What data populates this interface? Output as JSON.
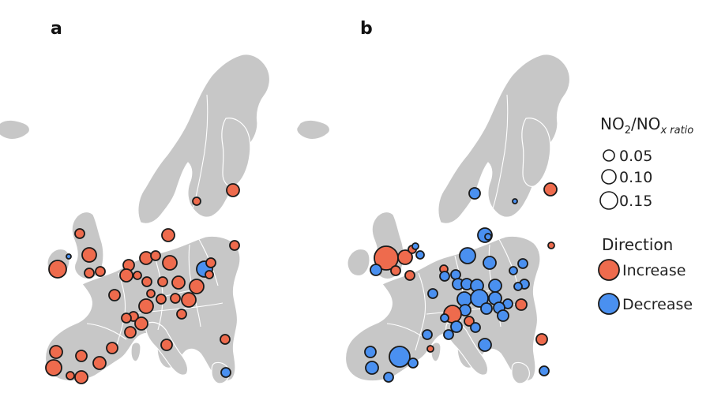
{
  "panels": [
    {
      "label": "a"
    },
    {
      "label": "b"
    }
  ],
  "legend": {
    "ratio_title_main": "NO",
    "ratio_title_sub1": "2",
    "ratio_title_mid": "/NO",
    "ratio_title_sub2": "x ratio",
    "sizes": [
      {
        "label": "0.05",
        "value": 0.05
      },
      {
        "label": "0.10",
        "value": 0.1
      },
      {
        "label": "0.15",
        "value": 0.15
      }
    ],
    "direction_title": "Direction",
    "directions": [
      {
        "label": "Increase",
        "color": "#EE6B4D"
      },
      {
        "label": "Decrease",
        "color": "#4A90F0"
      }
    ]
  },
  "colors": {
    "increase": "#EE6B4D",
    "decrease": "#4A90F0",
    "land": "#c7c7c7",
    "outline": "#1a1a1a"
  }
}
